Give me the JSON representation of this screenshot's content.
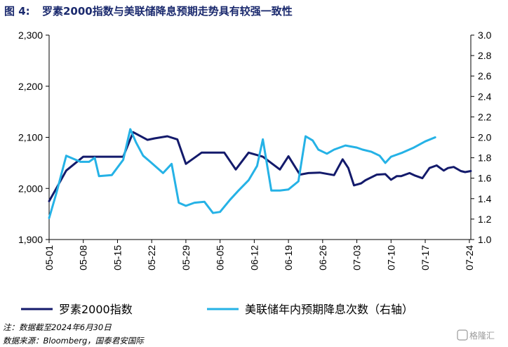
{
  "figure": {
    "number": "图 4:",
    "title": "罗素2000指数与美联储降息预期走势具有较强一致性"
  },
  "chart_data": {
    "type": "line",
    "x_labels": [
      "05-01",
      "05-08",
      "05-15",
      "05-22",
      "05-29",
      "06-05",
      "06-12",
      "06-19",
      "06-26",
      "07-03",
      "07-10",
      "07-17",
      "07-24"
    ],
    "y_left": {
      "ticks": [
        "1,900",
        "2,000",
        "2,100",
        "2,200",
        "2,300"
      ],
      "range": [
        1900,
        2300
      ]
    },
    "y_right": {
      "ticks": [
        "1.0",
        "1.2",
        "1.4",
        "1.6",
        "1.8",
        "2.0",
        "2.2",
        "2.4",
        "2.6",
        "2.8",
        "3.0"
      ],
      "range": [
        1.0,
        3.0
      ]
    },
    "grid": false,
    "legend_position": "bottom",
    "series": [
      {
        "name": "罗素2000指数",
        "axis": "left",
        "color": "#131a6b",
        "x": [
          0,
          0.25,
          0.6,
          1.2,
          1.6,
          2.6,
          2.95,
          3.45,
          3.7,
          4.15,
          4.5,
          4.8,
          5.35,
          5.75,
          6.15,
          6.55,
          7.0,
          7.5,
          8.1,
          8.4,
          8.8,
          9.1,
          9.5,
          10.0,
          10.3,
          10.5,
          10.7,
          10.95,
          11.1,
          11.5,
          11.8,
          12.0,
          12.2,
          12.35,
          12.65,
          12.85,
          13.1,
          13.35,
          13.6,
          13.85,
          14.0,
          14.2,
          14.45,
          14.6,
          14.8
        ],
        "y": [
          1975,
          2000,
          2035,
          2062,
          2062,
          2062,
          2110,
          2095,
          2098,
          2102,
          2096,
          2048,
          2070,
          2070,
          2070,
          2037,
          2070,
          2062,
          2037,
          2063,
          2027,
          2030,
          2031,
          2026,
          2057,
          2040,
          2006,
          2010,
          2016,
          2027,
          2028,
          2017,
          2024,
          2024,
          2030,
          2025,
          2020,
          2040,
          2045,
          2035,
          2040,
          2042,
          2034,
          2032,
          2034
        ]
      },
      {
        "name": "美联储年内预期降息次数（右轴）",
        "axis": "right",
        "color": "#25b2e6",
        "x": [
          0,
          0.25,
          0.6,
          1.1,
          1.4,
          1.6,
          1.75,
          2.2,
          2.6,
          2.85,
          3.05,
          3.3,
          3.55,
          4.0,
          4.3,
          4.55,
          4.8,
          5.1,
          5.45,
          5.75,
          6.0,
          6.35,
          6.65,
          7.0,
          7.3,
          7.5,
          7.8,
          8.1,
          8.4,
          8.75,
          9.0,
          9.25,
          9.45,
          9.75,
          10.0,
          10.4,
          10.8,
          11.0,
          11.3,
          11.6,
          11.8,
          12.0,
          12.4,
          12.8,
          13.2,
          13.55
        ],
        "y": [
          1.21,
          1.45,
          1.82,
          1.76,
          1.76,
          1.8,
          1.62,
          1.63,
          1.78,
          2.08,
          1.95,
          1.82,
          1.76,
          1.65,
          1.74,
          1.36,
          1.33,
          1.36,
          1.37,
          1.26,
          1.27,
          1.39,
          1.48,
          1.58,
          1.72,
          1.98,
          1.48,
          1.48,
          1.49,
          1.57,
          2.01,
          1.97,
          1.88,
          1.84,
          1.88,
          1.92,
          1.9,
          1.88,
          1.86,
          1.82,
          1.75,
          1.81,
          1.85,
          1.9,
          1.96,
          2.0
        ]
      }
    ]
  },
  "legend": [
    {
      "label": "罗素2000指数",
      "color": "#131a6b"
    },
    {
      "label": "美联储年内预期降息次数（右轴）",
      "color": "#25b2e6"
    }
  ],
  "footnotes": {
    "note": "注：数据截至2024年6月30日",
    "source": "数据来源：Bloomberg，国泰君安国际"
  },
  "watermark": "格隆汇"
}
